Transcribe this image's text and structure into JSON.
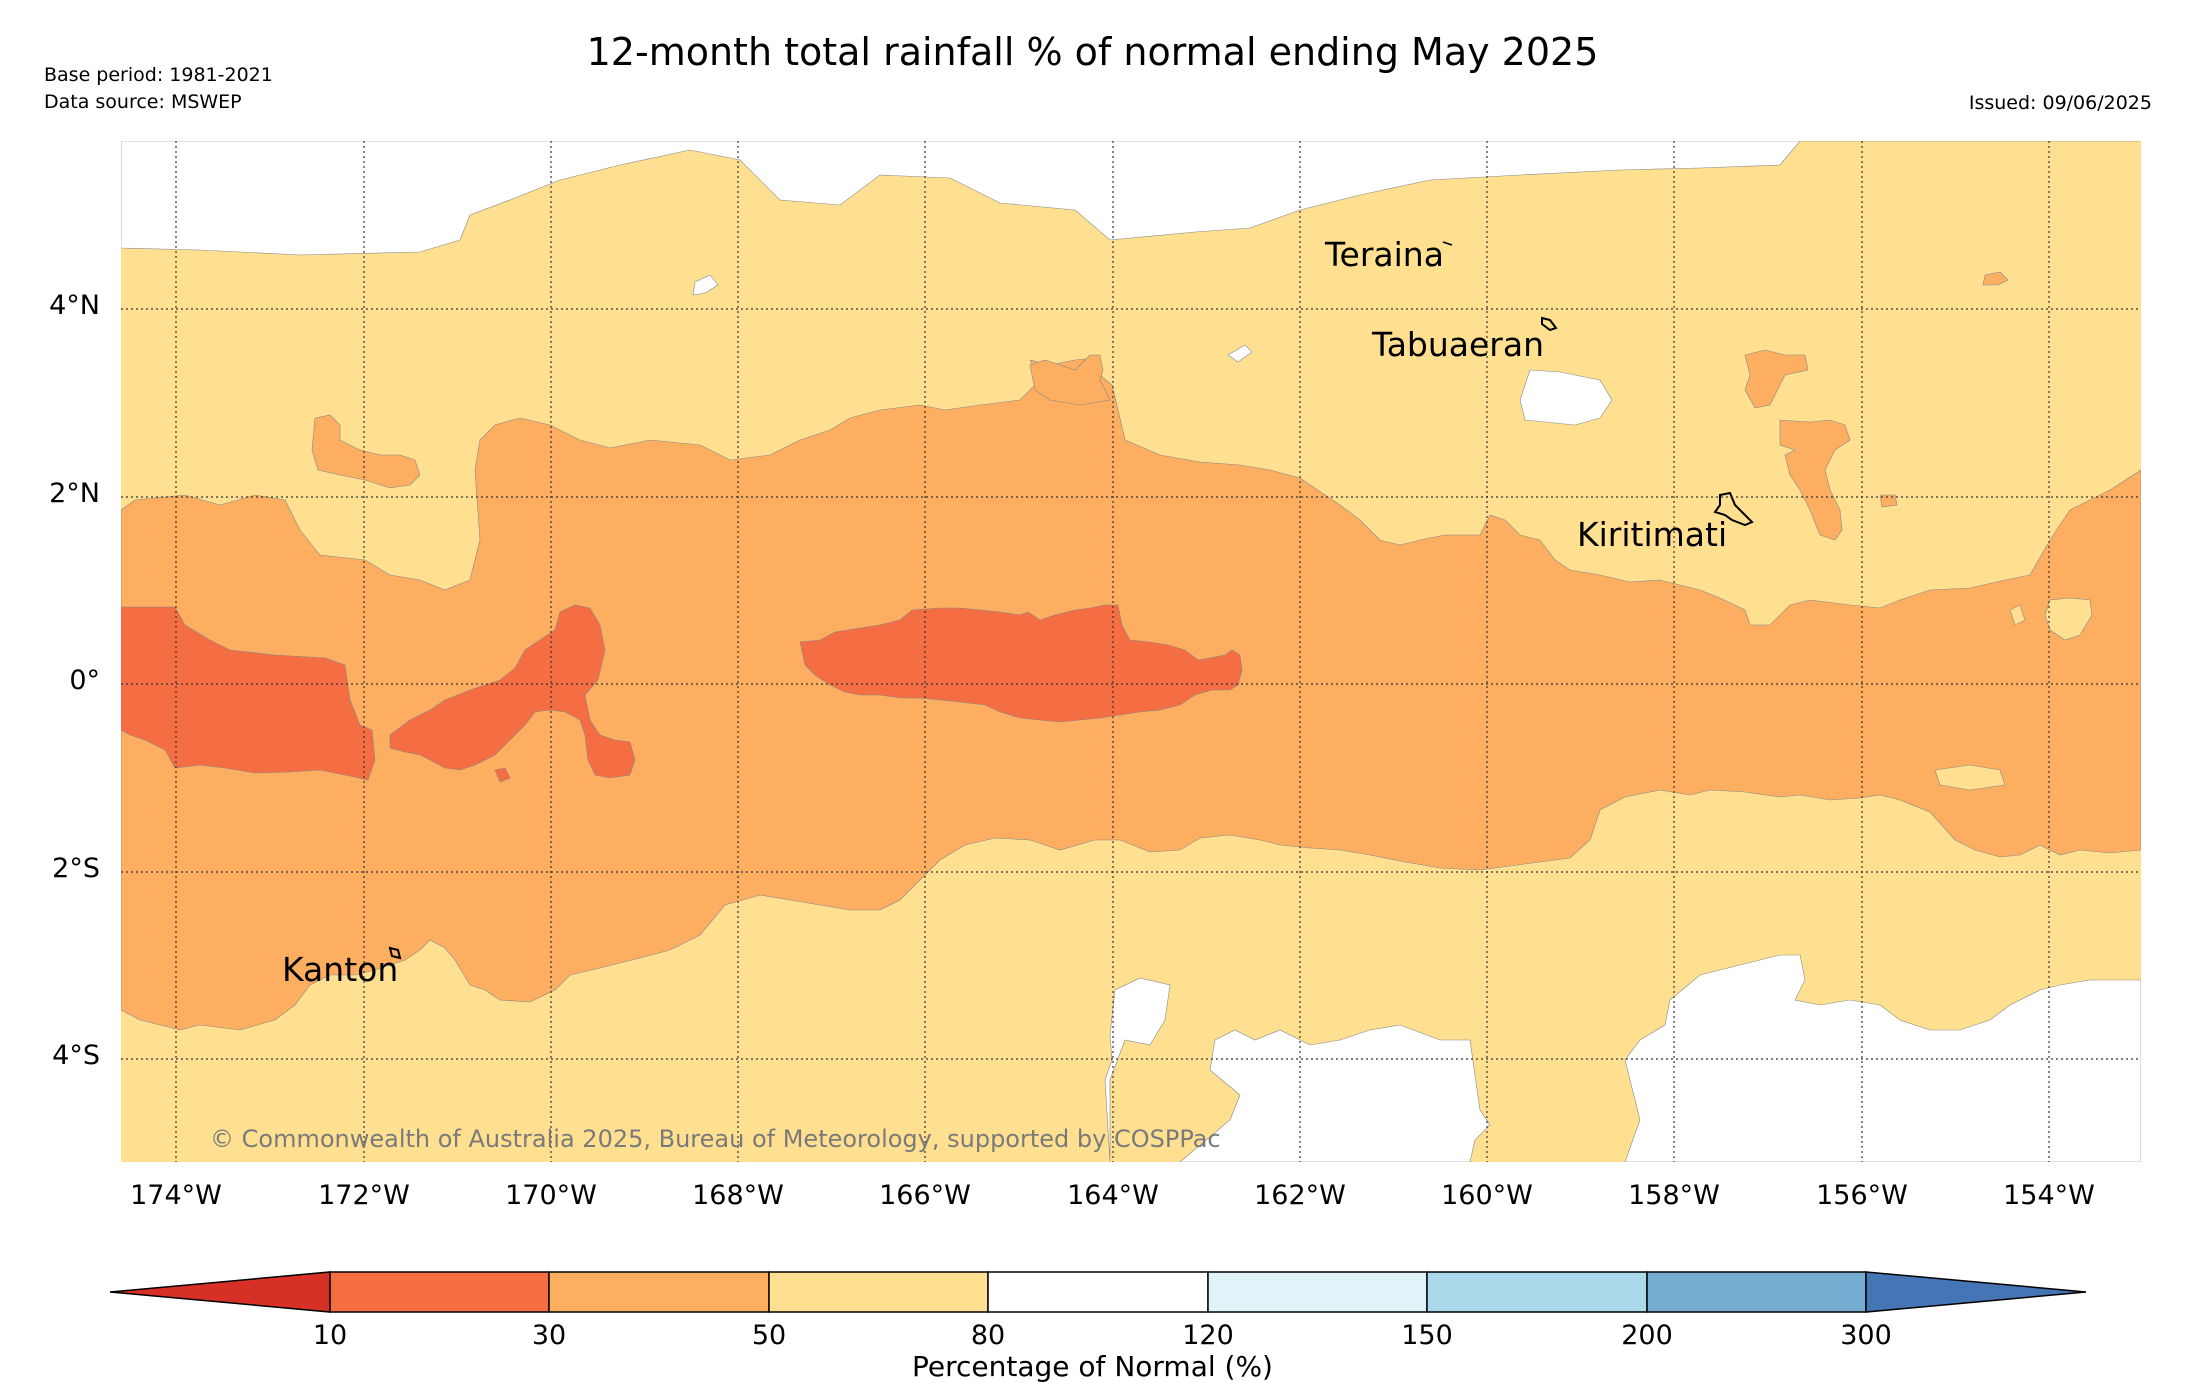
{
  "title": "12-month total rainfall % of normal ending May 2025",
  "meta": {
    "base_period": "Base period: 1981-2021",
    "data_source": "Data source: MSWEP",
    "issued": "Issued: 09/06/2025"
  },
  "axes": {
    "latitudes": [
      "4°N",
      "2°N",
      "0°",
      "2°S",
      "4°S"
    ],
    "longitudes": [
      "174°W",
      "172°W",
      "170°W",
      "168°W",
      "166°W",
      "164°W",
      "162°W",
      "160°W",
      "158°W",
      "156°W",
      "154°W"
    ]
  },
  "places": {
    "teraina": "Teraina",
    "tabuaeran": "Tabuaeran",
    "kiritimati": "Kiritimati",
    "kanton": "Kanton"
  },
  "copyright": "© Commonwealth of Australia 2025, Bureau of Meteorology, supported by COSPPac",
  "colorbar": {
    "label": "Percentage of Normal (%)",
    "ticks": [
      "10",
      "30",
      "50",
      "80",
      "120",
      "150",
      "200",
      "300"
    ],
    "colors": {
      "under_10": "#d73027",
      "10_30": "#f46d43",
      "30_50": "#fdae61",
      "50_80": "#fee090",
      "80_120": "#ffffff",
      "120_150": "#e0f3f8",
      "150_200": "#abd9e9",
      "200_300": "#74add1",
      "over_300": "#4575b4"
    }
  }
}
